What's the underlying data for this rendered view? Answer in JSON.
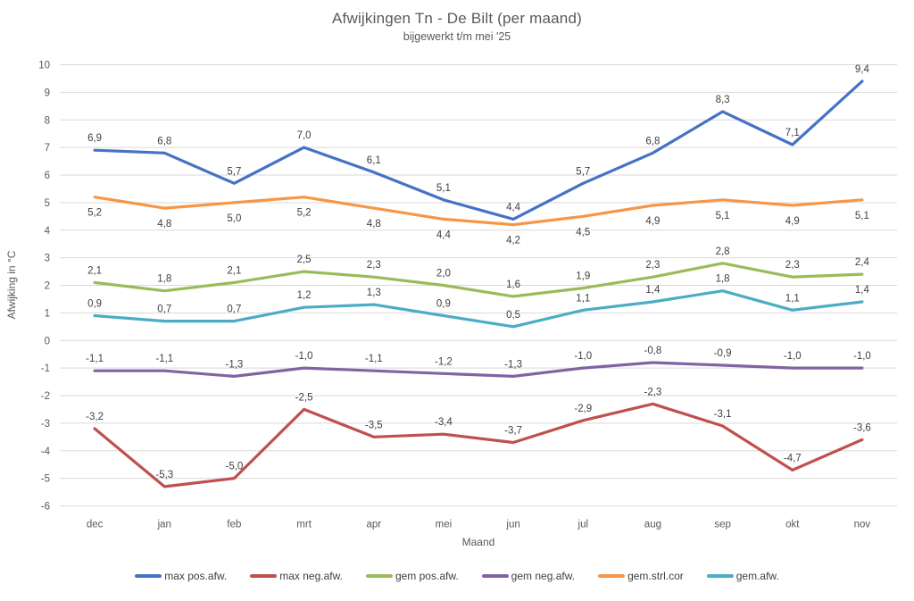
{
  "chart_data": {
    "type": "line",
    "title": "Afwijkingen Tn - De Bilt (per maand)",
    "subtitle": "bijgewerkt t/m mei '25",
    "xlabel": "Maand",
    "ylabel": "Afwijking in °C",
    "ylim": [
      -6,
      10
    ],
    "ytick_step": 1,
    "grid": true,
    "legend_position": "bottom",
    "decimal_separator": ",",
    "categories": [
      "dec",
      "jan",
      "feb",
      "mrt",
      "apr",
      "mei",
      "jun",
      "jul",
      "aug",
      "sep",
      "okt",
      "nov"
    ],
    "series": [
      {
        "name": "max pos.afw.",
        "color": "#4472C4",
        "label_position": "above",
        "values": [
          6.9,
          6.8,
          5.7,
          7.0,
          6.1,
          5.1,
          4.4,
          5.7,
          6.8,
          8.3,
          7.1,
          9.4
        ]
      },
      {
        "name": "max neg.afw.",
        "color": "#C0504D",
        "label_position": "above",
        "values": [
          -3.2,
          -5.3,
          -5.0,
          -2.5,
          -3.5,
          -3.4,
          -3.7,
          -2.9,
          -2.3,
          -3.1,
          -4.7,
          -3.6
        ]
      },
      {
        "name": "gem pos.afw.",
        "color": "#9BBB59",
        "label_position": "above",
        "values": [
          2.1,
          1.8,
          2.1,
          2.5,
          2.3,
          2.0,
          1.6,
          1.9,
          2.3,
          2.8,
          2.3,
          2.4
        ]
      },
      {
        "name": "gem neg.afw.",
        "color": "#8064A2",
        "label_position": "above",
        "values": [
          -1.1,
          -1.1,
          -1.3,
          -1.0,
          -1.1,
          -1.2,
          -1.3,
          -1.0,
          -0.8,
          -0.9,
          -1.0,
          -1.0
        ]
      },
      {
        "name": "gem.strl.cor",
        "color": "#F79646",
        "label_position": "below",
        "values": [
          5.2,
          4.8,
          5.0,
          5.2,
          4.8,
          4.4,
          4.2,
          4.5,
          4.9,
          5.1,
          4.9,
          5.1
        ]
      },
      {
        "name": "gem.afw.",
        "color": "#4BACC6",
        "label_position": "above",
        "values": [
          0.9,
          0.7,
          0.7,
          1.2,
          1.3,
          0.9,
          0.5,
          1.1,
          1.4,
          1.8,
          1.1,
          1.4
        ]
      }
    ]
  }
}
